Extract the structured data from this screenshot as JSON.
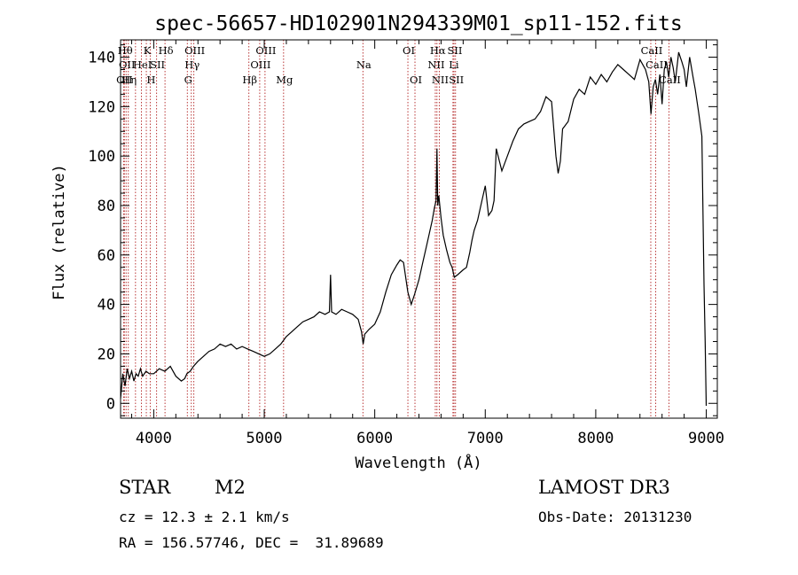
{
  "chart_data": {
    "type": "line",
    "title": "spec-56657-HD102901N294339M01_sp11-152.fits",
    "xlabel": "Wavelength (Å)",
    "ylabel": "Flux (relative)",
    "xlim": [
      3700,
      9100
    ],
    "ylim": [
      -6,
      147
    ],
    "xticks": [
      4000,
      5000,
      6000,
      7000,
      8000,
      9000
    ],
    "yticks": [
      0,
      20,
      40,
      60,
      80,
      100,
      120,
      140
    ],
    "grid": false,
    "line_color": "#000000",
    "marker_color": "#b22222",
    "series": [
      {
        "name": "flux",
        "x": [
          3700,
          3720,
          3740,
          3760,
          3780,
          3800,
          3820,
          3840,
          3860,
          3880,
          3900,
          3930,
          3960,
          4000,
          4050,
          4100,
          4150,
          4200,
          4250,
          4280,
          4300,
          4330,
          4360,
          4400,
          4450,
          4500,
          4550,
          4600,
          4650,
          4700,
          4750,
          4800,
          4850,
          4900,
          4950,
          5000,
          5050,
          5100,
          5150,
          5200,
          5250,
          5300,
          5350,
          5400,
          5450,
          5500,
          5550,
          5590,
          5600,
          5610,
          5650,
          5700,
          5750,
          5800,
          5850,
          5880,
          5895,
          5910,
          5950,
          6000,
          6050,
          6100,
          6150,
          6200,
          6230,
          6260,
          6300,
          6330,
          6360,
          6400,
          6430,
          6460,
          6480,
          6500,
          6520,
          6540,
          6555,
          6563,
          6570,
          6580,
          6600,
          6620,
          6650,
          6680,
          6700,
          6720,
          6750,
          6800,
          6830,
          6860,
          6880,
          6900,
          6930,
          6960,
          6980,
          7000,
          7030,
          7060,
          7080,
          7100,
          7150,
          7200,
          7250,
          7300,
          7350,
          7400,
          7450,
          7500,
          7550,
          7600,
          7640,
          7660,
          7680,
          7700,
          7750,
          7800,
          7850,
          7900,
          7950,
          8000,
          8050,
          8100,
          8150,
          8200,
          8250,
          8300,
          8350,
          8400,
          8450,
          8480,
          8500,
          8520,
          8540,
          8560,
          8580,
          8600,
          8620,
          8640,
          8660,
          8680,
          8700,
          8720,
          8750,
          8780,
          8800,
          8820,
          8850,
          8880,
          8900,
          8930,
          8960,
          8980,
          8990,
          9000
        ],
        "y": [
          2,
          12,
          7,
          14,
          10,
          13,
          9,
          12,
          11,
          14,
          11,
          13,
          12,
          12,
          14,
          13,
          15,
          11,
          9,
          10,
          12,
          13,
          15,
          17,
          19,
          21,
          22,
          24,
          23,
          24,
          22,
          23,
          22,
          21,
          20,
          19,
          20,
          22,
          24,
          27,
          29,
          31,
          33,
          34,
          35,
          37,
          36,
          37,
          52,
          37,
          36,
          38,
          37,
          36,
          34,
          29,
          24,
          28,
          30,
          32,
          37,
          45,
          52,
          56,
          58,
          57,
          45,
          40,
          44,
          50,
          56,
          62,
          66,
          70,
          74,
          79,
          82,
          103,
          80,
          84,
          75,
          68,
          62,
          57,
          55,
          51,
          52,
          54,
          55,
          61,
          66,
          70,
          74,
          80,
          84,
          88,
          76,
          78,
          82,
          103,
          94,
          100,
          106,
          111,
          113,
          114,
          115,
          118,
          124,
          122,
          100,
          93,
          98,
          111,
          114,
          123,
          127,
          125,
          132,
          129,
          133,
          130,
          134,
          137,
          135,
          133,
          131,
          139,
          135,
          130,
          117,
          128,
          131,
          125,
          133,
          121,
          135,
          138,
          132,
          140,
          136,
          130,
          142,
          138,
          135,
          128,
          140,
          132,
          127,
          118,
          108,
          48,
          25,
          -1
        ]
      }
    ],
    "line_markers": [
      {
        "x": 3734,
        "label": "Hθ",
        "row": 0
      },
      {
        "x": 3750,
        "label": "OII",
        "row": 1
      },
      {
        "x": 3727,
        "label": "OII",
        "row": 2
      },
      {
        "x": 3770,
        "label": "Hη",
        "row": 2
      },
      {
        "x": 3835,
        "label": "",
        "row": 0
      },
      {
        "x": 3889,
        "label": "HeI",
        "row": 1
      },
      {
        "x": 3933,
        "label": "K",
        "row": 0
      },
      {
        "x": 3968,
        "label": "H",
        "row": 2
      },
      {
        "x": 4026,
        "label": "SII",
        "row": 1
      },
      {
        "x": 4102,
        "label": "Hδ",
        "row": 0
      },
      {
        "x": 4304,
        "label": "G",
        "row": 2
      },
      {
        "x": 4340,
        "label": "Hγ",
        "row": 1
      },
      {
        "x": 4363,
        "label": "OIII",
        "row": 0
      },
      {
        "x": 4861,
        "label": "Hβ",
        "row": 2
      },
      {
        "x": 4959,
        "label": "OIII",
        "row": 1
      },
      {
        "x": 5007,
        "label": "OIII",
        "row": 0
      },
      {
        "x": 5175,
        "label": "Mg",
        "row": 2
      },
      {
        "x": 5893,
        "label": "Na",
        "row": 1
      },
      {
        "x": 6300,
        "label": "OI",
        "row": 0
      },
      {
        "x": 6364,
        "label": "OI",
        "row": 2
      },
      {
        "x": 6548,
        "label": "NII",
        "row": 1
      },
      {
        "x": 6563,
        "label": "Hα",
        "row": 0
      },
      {
        "x": 6584,
        "label": "NII",
        "row": 2
      },
      {
        "x": 6708,
        "label": "Li",
        "row": 1
      },
      {
        "x": 6717,
        "label": "SII",
        "row": 0
      },
      {
        "x": 6731,
        "label": "SII",
        "row": 2
      },
      {
        "x": 8498,
        "label": "CaII",
        "row": 0
      },
      {
        "x": 8542,
        "label": "CaII",
        "row": 1
      },
      {
        "x": 8662,
        "label": "CaII",
        "row": 2
      }
    ]
  },
  "info": {
    "class": "STAR",
    "subclass": "M2",
    "survey": "LAMOST DR3",
    "redshift": "cz = 12.3 ± 2.1 km/s",
    "obs_date": "Obs-Date: 20131230",
    "coords": "RA = 156.57746, DEC =  31.89689"
  }
}
